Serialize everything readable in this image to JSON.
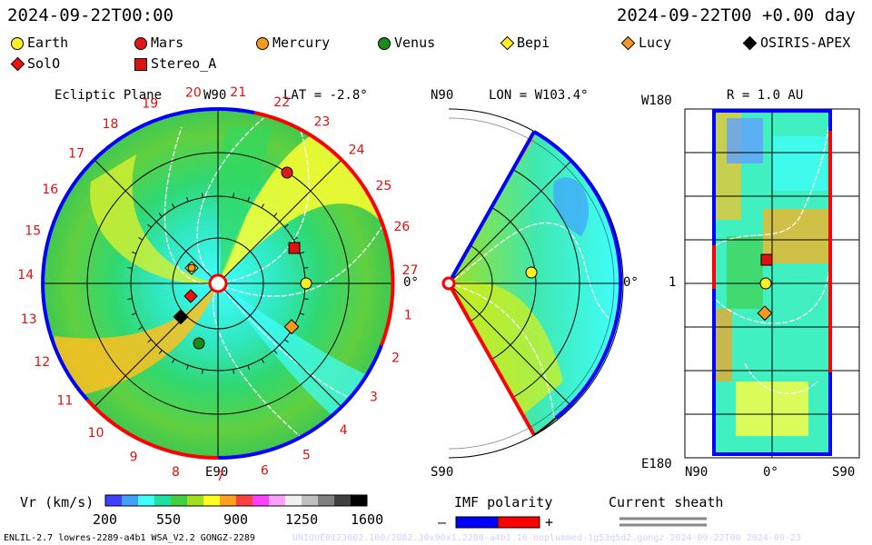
{
  "header": {
    "left_time": "2024-09-22T00:00",
    "right_time": "2024-09-22T00 +0.00 day"
  },
  "legend": {
    "items": [
      {
        "name": "Earth",
        "shape": "circle",
        "color": "#ffee22"
      },
      {
        "name": "Mars",
        "shape": "circle",
        "color": "#e01818"
      },
      {
        "name": "Mercury",
        "shape": "circle",
        "color": "#f59a1c"
      },
      {
        "name": "Venus",
        "shape": "circle",
        "color": "#1a8a1a"
      },
      {
        "name": "Bepi",
        "shape": "diamond",
        "color": "#ffee22"
      },
      {
        "name": "Lucy",
        "shape": "diamond",
        "color": "#f59a1c"
      },
      {
        "name": "OSIRIS-APEX",
        "shape": "diamond",
        "color": "#000000"
      },
      {
        "name": "SolO",
        "shape": "diamond",
        "color": "#ee1010"
      },
      {
        "name": "Stereo_A",
        "shape": "square",
        "color": "#e01010"
      }
    ]
  },
  "panels": {
    "ecliptic": {
      "title": "Ecliptic Plane",
      "top_label": "W90",
      "bottom_label": "E90",
      "lat_label": "LAT = -2.8°",
      "right_label": "0°"
    },
    "meridional": {
      "top_label": "N90",
      "bottom_label": "S90",
      "lon_label": "LON = W103.4°",
      "right_label": "0°"
    },
    "radial": {
      "title": "R = 1.0 AU",
      "left_top": "W180",
      "left_mid": "1",
      "left_bottom": "E180",
      "bottom_left": "N90",
      "bottom_mid": "0°",
      "bottom_right": "S90"
    }
  },
  "colorbar": {
    "label": "Vr (km/s)",
    "ticks": [
      "200",
      "550",
      "900",
      "1250",
      "1600"
    ],
    "colors": [
      "#4040ff",
      "#40a0ff",
      "#40ffff",
      "#20e0a0",
      "#40d040",
      "#a0e020",
      "#ffff20",
      "#ffa020",
      "#ff4040",
      "#ff40ff",
      "#ffa0ff",
      "#f0f0f0",
      "#c0c0c0",
      "#808080",
      "#404040",
      "#000000"
    ]
  },
  "imf": {
    "label": "IMF polarity",
    "minus": "–",
    "plus": "+",
    "neg_color": "#0000ff",
    "pos_color": "#ff0000"
  },
  "sheath": {
    "label": "Current sheath"
  },
  "footer": {
    "left": "ENLIL-2.7 lowres-2289-a4b1 WSA_V2.2 GONGZ-2289",
    "right": "UNIQUE0123002.100/2082.30x90x1.2288-a4b1.16-noplummed-1g53q5d2.gongz-2024-09-22T00 2024-09-23"
  },
  "chart_data": {
    "type": "heatmap",
    "title": "Ecliptic Plane",
    "carrington_ticks": [
      "19",
      "20",
      "21",
      "22",
      "23",
      "24",
      "25",
      "26",
      "27",
      "1",
      "2",
      "3",
      "4",
      "5",
      "6",
      "7",
      "8",
      "9",
      "10",
      "11",
      "12",
      "13",
      "14",
      "15",
      "16",
      "17",
      "18"
    ],
    "bodies_ecliptic": [
      {
        "name": "Earth"
      },
      {
        "name": "Mars"
      },
      {
        "name": "Mercury"
      },
      {
        "name": "Venus"
      },
      {
        "name": "Bepi"
      },
      {
        "name": "Lucy"
      },
      {
        "name": "OSIRIS-APEX"
      },
      {
        "name": "SolO"
      },
      {
        "name": "Stereo_A"
      }
    ],
    "vr_range": [
      200,
      1600
    ]
  }
}
